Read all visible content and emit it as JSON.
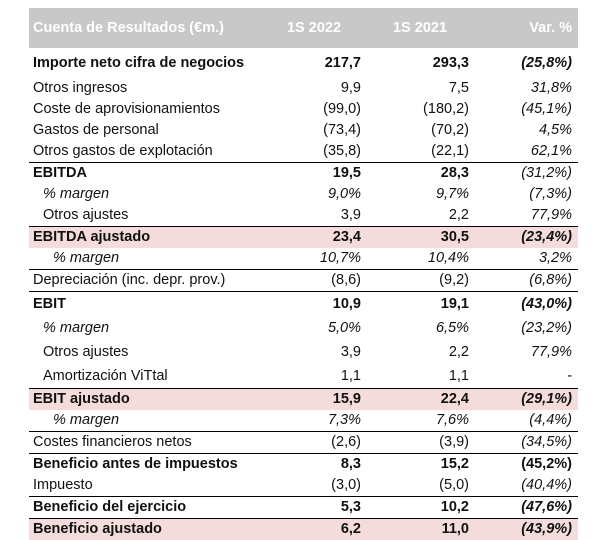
{
  "header": {
    "title": "Cuenta de Resultados (€m.)",
    "col1": "1S 2022",
    "col2": "1S 2021",
    "col3": "Var. %"
  },
  "rows": [
    {
      "label": "Importe neto cifra de negocios",
      "v1": "217,7",
      "v2": "293,3",
      "v3": "(25,8%)"
    },
    {
      "label": "Otros ingresos",
      "v1": "9,9",
      "v2": "7,5",
      "v3": "31,8%"
    },
    {
      "label": "Coste de aprovisionamientos",
      "v1": "(99,0)",
      "v2": "(180,2)",
      "v3": "(45,1%)"
    },
    {
      "label": "Gastos de personal",
      "v1": "(73,4)",
      "v2": "(70,2)",
      "v3": "4,5%"
    },
    {
      "label": "Otros gastos de explotación",
      "v1": "(35,8)",
      "v2": "(22,1)",
      "v3": "62,1%"
    },
    {
      "label": "EBITDA",
      "v1": "19,5",
      "v2": "28,3",
      "v3": "(31,2%)"
    },
    {
      "label": "% margen",
      "v1": "9,0%",
      "v2": "9,7%",
      "v3": "(7,3%)"
    },
    {
      "label": "Otros ajustes",
      "v1": "3,9",
      "v2": "2,2",
      "v3": "77,9%"
    },
    {
      "label": "EBITDA ajustado",
      "v1": "23,4",
      "v2": "30,5",
      "v3": "(23,4%)"
    },
    {
      "label": "% margen",
      "v1": "10,7%",
      "v2": "10,4%",
      "v3": "3,2%"
    },
    {
      "label": "Depreciación (inc. depr. prov.)",
      "v1": "(8,6)",
      "v2": "(9,2)",
      "v3": "(6,8%)"
    },
    {
      "label": "EBIT",
      "v1": "10,9",
      "v2": "19,1",
      "v3": "(43,0%)"
    },
    {
      "label": "% margen",
      "v1": "5,0%",
      "v2": "6,5%",
      "v3": "(23,2%)"
    },
    {
      "label": "Otros ajustes",
      "v1": "3,9",
      "v2": "2,2",
      "v3": "77,9%"
    },
    {
      "label": "Amortización ViTtal",
      "v1": "1,1",
      "v2": "1,1",
      "v3": "-"
    },
    {
      "label": "EBIT ajustado",
      "v1": "15,9",
      "v2": "22,4",
      "v3": "(29,1%)"
    },
    {
      "label": "% margen",
      "v1": "7,3%",
      "v2": "7,6%",
      "v3": "(4,4%)"
    },
    {
      "label": "Costes financieros netos",
      "v1": "(2,6)",
      "v2": "(3,9)",
      "v3": "(34,5%)"
    },
    {
      "label": "Beneficio antes de impuestos",
      "v1": "8,3",
      "v2": "15,2",
      "v3": "(45,2%)"
    },
    {
      "label": "Impuesto",
      "v1": "(3,0)",
      "v2": "(5,0)",
      "v3": "(40,4%)"
    },
    {
      "label": "Beneficio del ejercicio",
      "v1": "5,3",
      "v2": "10,2",
      "v3": "(47,6%)"
    },
    {
      "label": "Beneficio ajustado",
      "v1": "6,2",
      "v2": "11,0",
      "v3": "(43,9%)"
    }
  ]
}
